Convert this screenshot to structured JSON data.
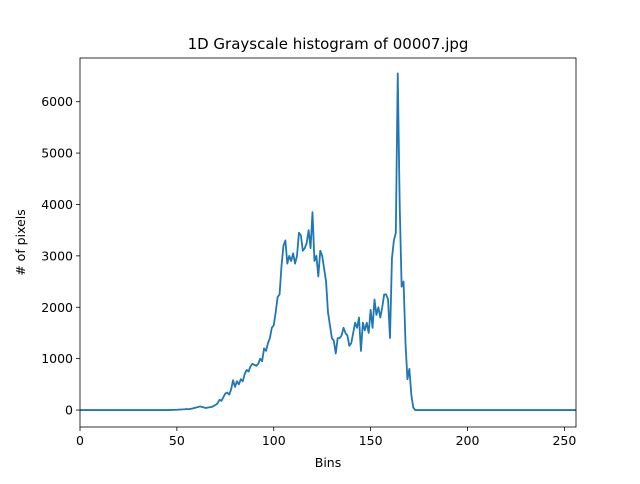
{
  "chart_data": {
    "type": "line",
    "title": "1D Grayscale histogram of 00007.jpg",
    "xlabel": "Bins",
    "ylabel": "# of pixels",
    "xlim": [
      0,
      256
    ],
    "ylim": [
      -330,
      6850
    ],
    "x_ticks": [
      0,
      50,
      100,
      150,
      200,
      250
    ],
    "y_ticks": [
      0,
      1000,
      2000,
      3000,
      4000,
      5000,
      6000
    ],
    "grid": false,
    "series_color": "#1f77b4",
    "series": [
      {
        "x": [
          0,
          5,
          10,
          15,
          20,
          25,
          30,
          35,
          40,
          45,
          50,
          52,
          54,
          55,
          56,
          58,
          60,
          62,
          63,
          65,
          66,
          68,
          70,
          71,
          72,
          73,
          75,
          76,
          77,
          78,
          79,
          80,
          81,
          82,
          83,
          84,
          85,
          86,
          87,
          88,
          89,
          90,
          91,
          92,
          93,
          94,
          95,
          96,
          97,
          98,
          99,
          100,
          101,
          102,
          103,
          104,
          105,
          106,
          107,
          108,
          109,
          110,
          111,
          112,
          113,
          114,
          115,
          116,
          117,
          118,
          119,
          120,
          121,
          122,
          123,
          124,
          125,
          126,
          127,
          128,
          129,
          130,
          131,
          132,
          133,
          134,
          135,
          136,
          137,
          138,
          139,
          140,
          141,
          142,
          143,
          144,
          145,
          146,
          147,
          148,
          149,
          150,
          151,
          152,
          153,
          154,
          155,
          156,
          157,
          158,
          159,
          160,
          161,
          162,
          163,
          164,
          165,
          166,
          167,
          168,
          169,
          170,
          171,
          172,
          173,
          174,
          175,
          176,
          177,
          178,
          179,
          180,
          181,
          182,
          183,
          184,
          185,
          186,
          190,
          200,
          220,
          240,
          256
        ],
        "y": [
          0,
          0,
          0,
          0,
          0,
          0,
          0,
          0,
          0,
          0,
          5,
          10,
          15,
          20,
          15,
          30,
          50,
          70,
          60,
          40,
          50,
          60,
          100,
          130,
          200,
          180,
          320,
          340,
          300,
          400,
          580,
          450,
          560,
          500,
          600,
          560,
          700,
          780,
          750,
          850,
          900,
          880,
          860,
          900,
          1000,
          950,
          1200,
          1150,
          1300,
          1400,
          1600,
          1650,
          1900,
          2200,
          2250,
          2800,
          3200,
          3300,
          2850,
          3000,
          2900,
          3050,
          2850,
          3000,
          3450,
          3400,
          3100,
          3150,
          3250,
          3500,
          3150,
          3850,
          2900,
          3000,
          2600,
          3100,
          3000,
          2750,
          2500,
          1900,
          1650,
          1400,
          1350,
          1100,
          1400,
          1400,
          1450,
          1600,
          1500,
          1450,
          1250,
          1300,
          1500,
          1700,
          1600,
          1800,
          1150,
          1700,
          1550,
          1700,
          1500,
          1950,
          1600,
          2150,
          1850,
          2000,
          1800,
          2000,
          2250,
          2250,
          2150,
          1400,
          2950,
          3300,
          3450,
          6550,
          4000,
          2400,
          2500,
          1300,
          600,
          800,
          300,
          50,
          0,
          0,
          0,
          0,
          0,
          0,
          0,
          0,
          0,
          0,
          0,
          0,
          0,
          0,
          0,
          0,
          0,
          0,
          0
        ]
      }
    ]
  }
}
